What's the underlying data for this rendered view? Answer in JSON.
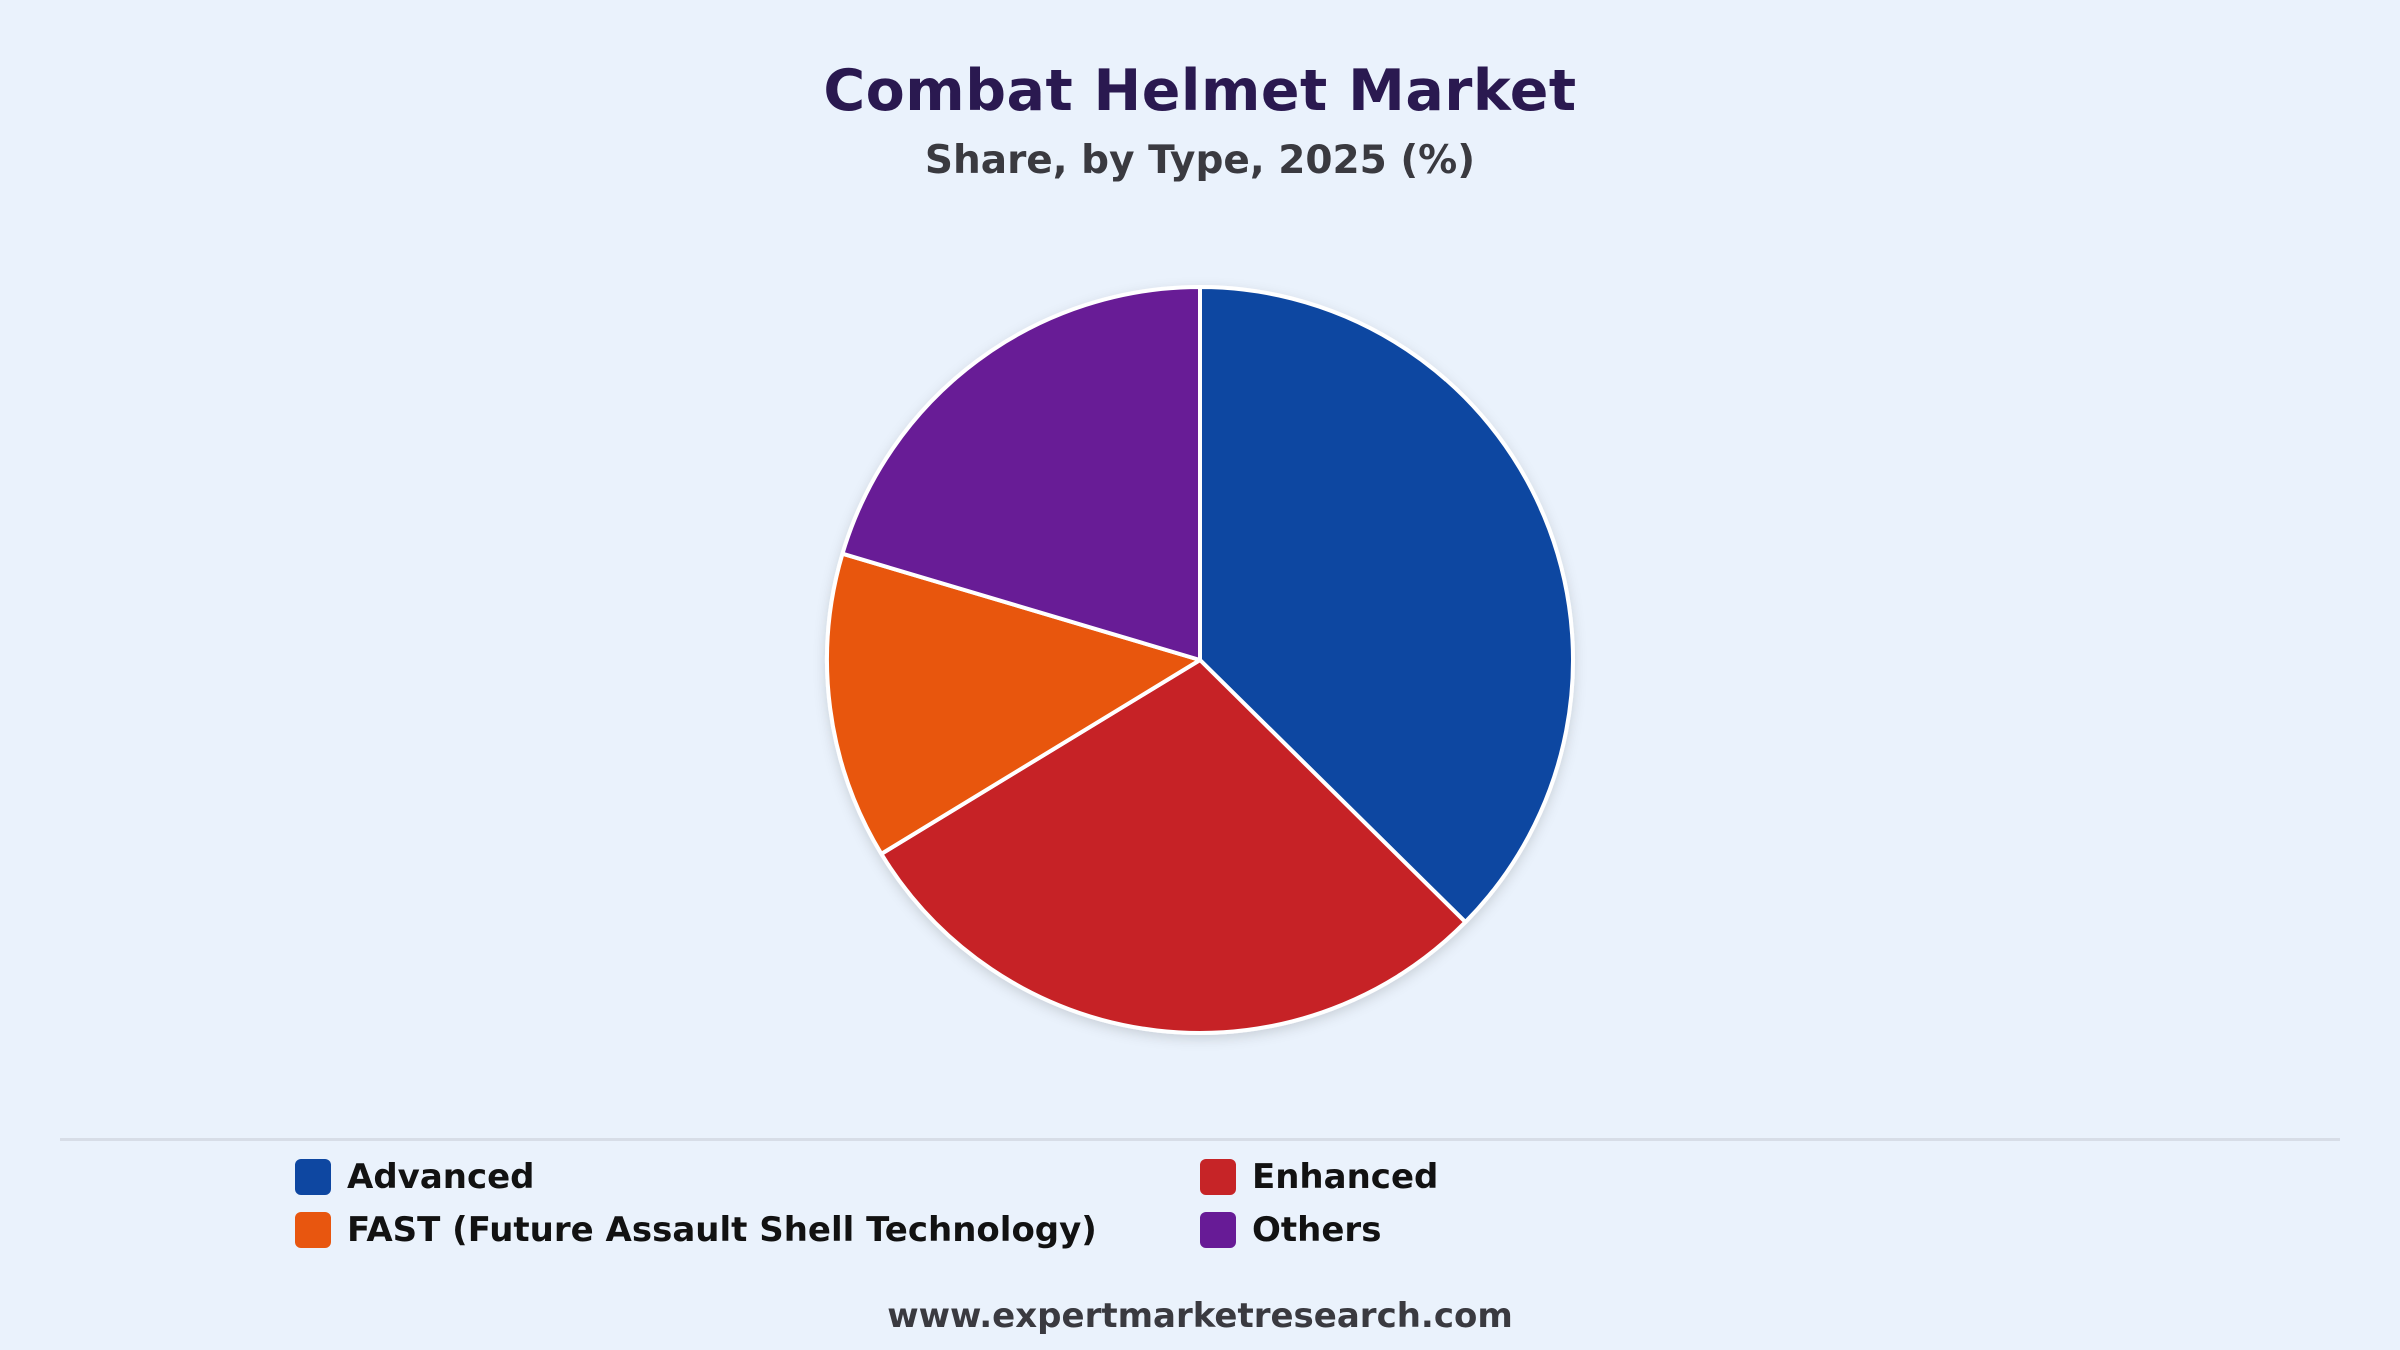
{
  "chart_data": {
    "type": "pie",
    "title": "Combat Helmet Market",
    "subtitle": "Share, by Type, 2025 (%)",
    "categories": [
      "Advanced",
      "Enhanced",
      "FAST (Future Assault Shell Technology)",
      "Others"
    ],
    "values": [
      37.4,
      28.9,
      13.3,
      20.4
    ],
    "colors": [
      "#0e47a1",
      "#c62427",
      "#e8560f",
      "#671b96"
    ],
    "start_angle_deg": 0,
    "direction": "clockwise",
    "legend_position": "bottom"
  },
  "footer": {
    "url": "www.expertmarketresearch.com"
  }
}
